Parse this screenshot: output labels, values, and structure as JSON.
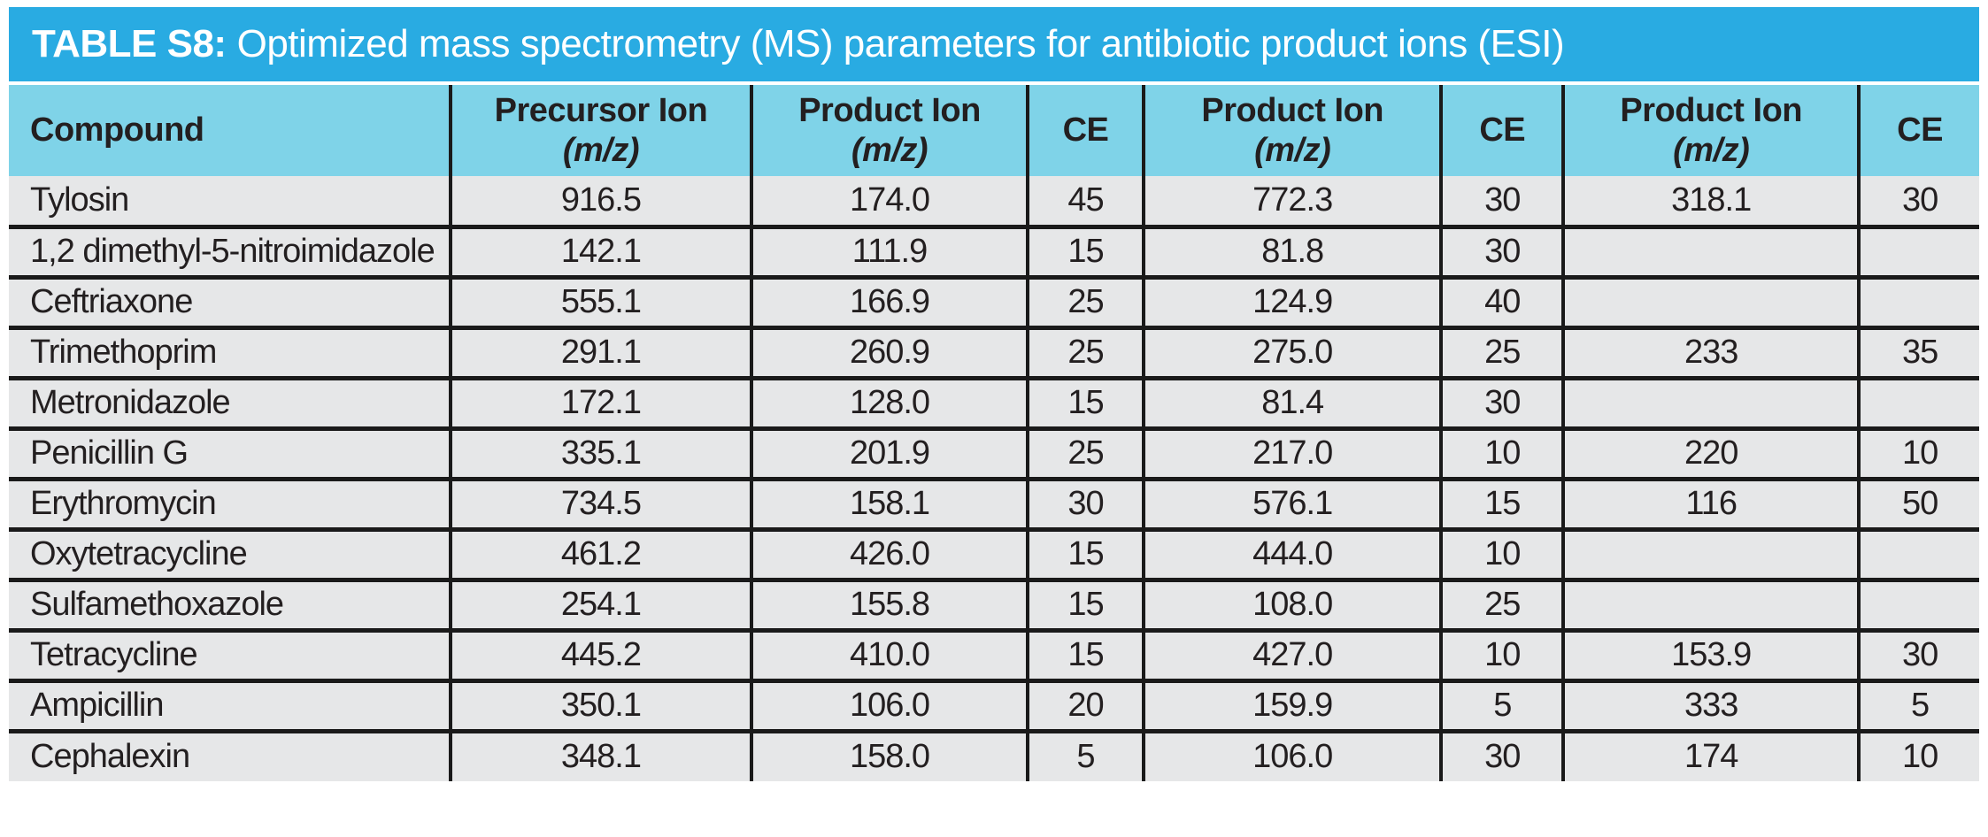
{
  "title": {
    "label": "TABLE S8:",
    "text": "Optimized mass spectrometry (MS) parameters for antibiotic product ions (ESI)"
  },
  "table": {
    "columns": [
      {
        "label": "Compound",
        "sub": ""
      },
      {
        "label": "Precursor Ion",
        "sub": "(m/z)"
      },
      {
        "label": "Product Ion",
        "sub": "(m/z)"
      },
      {
        "label": "CE",
        "sub": ""
      },
      {
        "label": "Product Ion",
        "sub": "(m/z)"
      },
      {
        "label": "CE",
        "sub": ""
      },
      {
        "label": "Product Ion",
        "sub": "(m/z)"
      },
      {
        "label": "CE",
        "sub": ""
      }
    ],
    "rows": [
      [
        "Tylosin",
        "916.5",
        "174.0",
        "45",
        "772.3",
        "30",
        "318.1",
        "30"
      ],
      [
        "1,2 dimethyl-5-nitroimidazole",
        "142.1",
        "111.9",
        "15",
        "81.8",
        "30",
        "",
        ""
      ],
      [
        "Ceftriaxone",
        "555.1",
        "166.9",
        "25",
        "124.9",
        "40",
        "",
        ""
      ],
      [
        "Trimethoprim",
        "291.1",
        "260.9",
        "25",
        "275.0",
        "25",
        "233",
        "35"
      ],
      [
        "Metronidazole",
        "172.1",
        "128.0",
        "15",
        "81.4",
        "30",
        "",
        ""
      ],
      [
        "Penicillin G",
        "335.1",
        "201.9",
        "25",
        "217.0",
        "10",
        "220",
        "10"
      ],
      [
        "Erythromycin",
        "734.5",
        "158.1",
        "30",
        "576.1",
        "15",
        "116",
        "50"
      ],
      [
        "Oxytetracycline",
        "461.2",
        "426.0",
        "15",
        "444.0",
        "10",
        "",
        ""
      ],
      [
        "Sulfamethoxazole",
        "254.1",
        "155.8",
        "15",
        "108.0",
        "25",
        "",
        ""
      ],
      [
        "Tetracycline",
        "445.2",
        "410.0",
        "15",
        "427.0",
        "10",
        "153.9",
        "30"
      ],
      [
        "Ampicillin",
        "350.1",
        "106.0",
        "20",
        "159.9",
        "5",
        "333",
        "5"
      ],
      [
        "Cephalexin",
        "348.1",
        "158.0",
        "5",
        "106.0",
        "30",
        "174",
        "10"
      ]
    ]
  },
  "colors": {
    "title_bar": "#29ABE2",
    "header_bg": "#7FD3E8",
    "row_bg": "#E6E7E8",
    "border": "#1A1A1A",
    "text": "#231F20",
    "title_text": "#FFFFFF"
  }
}
